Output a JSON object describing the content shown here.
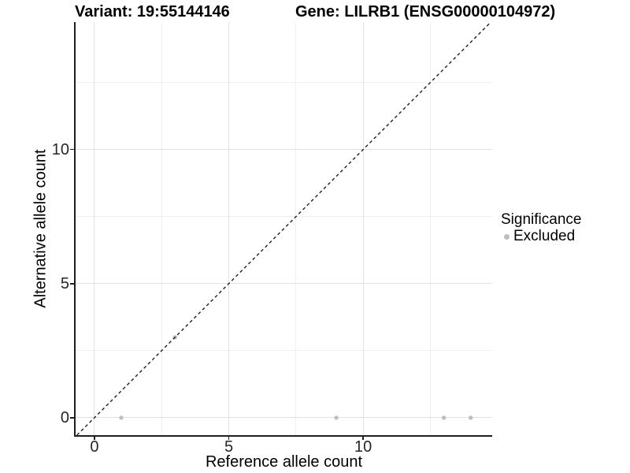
{
  "title": {
    "left": "Variant: 19:55144146",
    "right": "Gene: LILRB1 (ENSG00000104972)"
  },
  "chart_data": {
    "type": "scatter",
    "xlabel": "Reference allele count",
    "ylabel": "Alternative allele count",
    "xlim": [
      -0.7,
      14.8
    ],
    "ylim": [
      -0.65,
      14.75
    ],
    "x_major_ticks": [
      0,
      5,
      10
    ],
    "y_major_ticks": [
      0,
      5,
      10
    ],
    "x_minor_gridlines": [
      2.5,
      7.5,
      12.5
    ],
    "y_minor_gridlines": [
      2.5,
      7.5,
      12.5
    ],
    "grid": "major and minor gridlines on white background",
    "legend_position": "right",
    "series": [
      {
        "name": "Excluded",
        "color": "#bebebe",
        "point_radius": 2.7,
        "points": [
          [
            1,
            0
          ],
          [
            3,
            3
          ],
          [
            9,
            0
          ],
          [
            13,
            0
          ],
          [
            14,
            0
          ]
        ]
      }
    ],
    "reference_line": {
      "kind": "identity y = x",
      "style": "dashed",
      "color": "#1f1f1f"
    }
  },
  "legend": {
    "title": "Significance",
    "items": [
      {
        "label": "Excluded",
        "color": "#bebebe"
      }
    ]
  },
  "colors": {
    "point": "#bebebe",
    "grid_major": "#e2e2e2",
    "grid_minor": "#f0f0f0",
    "axis": "#1f1f1f",
    "dashed_line": "#1f1f1f",
    "text": "#000000"
  }
}
